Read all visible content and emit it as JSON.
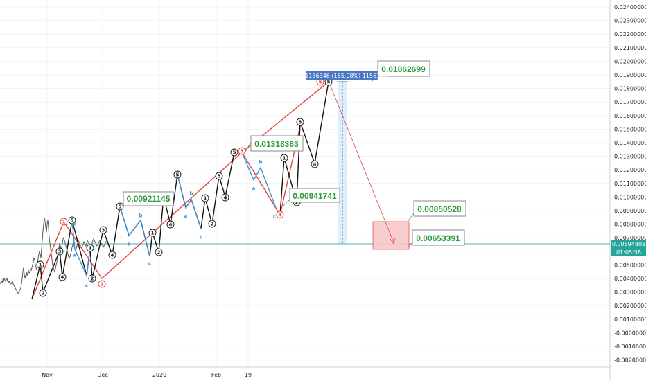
{
  "chart_data": {
    "type": "line",
    "x_ticks": [
      "Nov",
      "Dec",
      "2020",
      "Feb",
      "19"
    ],
    "y_ticks": [
      "0.02400000",
      "0.02300000",
      "0.02200000",
      "0.02100000",
      "0.02000000",
      "0.01900000",
      "0.01800000",
      "0.01700000",
      "0.01600000",
      "0.01500000",
      "0.01400000",
      "0.01300000",
      "0.01200000",
      "0.01100000",
      "0.01000000",
      "0.00900000",
      "0.00800000",
      "0.00700000",
      "0.00600000",
      "0.00500000",
      "0.00400000",
      "0.00300000",
      "0.00200000",
      "0.00100000",
      "-0.00000000",
      "-0.00100000",
      "-0.00200000"
    ],
    "ylim": [
      -0.002,
      0.0245
    ],
    "current_price": "0.00694808",
    "countdown": "01:05:38",
    "callouts": [
      "0.01862699",
      "0.01318363",
      "0.00921145",
      "0.00941741",
      "0.00850528",
      "0.00653391"
    ],
    "measure_label": "0.01156346 (165.08%) 1156346",
    "colors": {
      "black_wave": "#111111",
      "red_wave": "#e8403a",
      "blue_wave": "#3b8fd4",
      "price_line": "#4db6ac",
      "target_box": "#f8c8c8",
      "callout_text": "#2e9b3f",
      "measure_tag": "#4a78c4"
    },
    "series": [
      {
        "x": [
          0,
          1,
          2,
          3,
          4,
          5,
          6,
          7,
          8,
          9,
          10,
          11,
          12,
          13,
          14,
          15,
          16,
          17,
          18,
          19,
          20,
          21,
          22,
          23,
          24,
          25,
          26,
          27,
          28,
          29,
          30,
          31,
          32,
          33,
          34,
          35,
          36,
          37,
          38,
          39,
          40,
          41,
          42,
          43,
          44,
          45,
          46,
          47,
          48,
          49,
          50,
          51,
          52,
          53,
          54,
          55,
          56,
          57,
          58,
          59,
          60,
          61,
          62,
          63,
          64,
          65,
          66,
          67,
          68,
          69,
          70,
          71,
          72,
          73,
          74,
          75,
          76,
          77,
          78,
          79,
          80,
          81,
          82,
          83,
          84,
          85,
          86,
          87,
          88,
          89,
          90,
          91,
          92,
          93,
          94,
          95,
          96,
          97,
          98,
          99,
          100,
          101,
          102,
          103,
          104,
          105,
          106,
          107,
          108,
          109,
          110,
          111,
          112,
          113,
          114,
          115,
          116,
          117,
          118,
          119,
          120,
          121,
          122,
          123,
          124,
          125,
          126,
          127,
          128,
          129,
          130,
          131,
          132,
          133,
          134,
          135,
          136,
          137,
          138,
          139,
          140,
          141,
          142,
          143,
          144,
          145,
          146,
          147,
          148,
          149,
          150,
          151,
          152,
          153,
          154,
          155
        ],
        "y": [
          0.0036,
          0.0037,
          0.0038,
          0.0037,
          0.0039,
          0.0038,
          0.004,
          0.0039,
          0.0038,
          0.0039,
          0.004,
          0.0038,
          0.0037,
          0.0038,
          0.0037,
          0.0036,
          0.0036,
          0.0037,
          0.0038,
          0.0036,
          0.0035,
          0.0034,
          0.0033,
          0.0032,
          0.0031,
          0.003,
          0.0029,
          0.003,
          0.0031,
          0.0032,
          0.0033,
          0.0036,
          0.004,
          0.0045,
          0.0048,
          0.0043,
          0.004,
          0.0042,
          0.0045,
          0.0042,
          0.0044,
          0.0046,
          0.0044,
          0.0045,
          0.0047,
          0.0046,
          0.0048,
          0.005,
          0.0052,
          0.0055,
          0.0054,
          0.005,
          0.0048,
          0.0046,
          0.005,
          0.0055,
          0.0058,
          0.006,
          0.0058,
          0.0055,
          0.0062,
          0.0068,
          0.0075,
          0.008,
          0.0085,
          0.0082,
          0.0078,
          0.0074,
          0.008,
          0.0083,
          0.0078,
          0.007,
          0.0066,
          0.0062,
          0.0058,
          0.0054,
          0.005,
          0.0048,
          0.0046,
          0.0045,
          0.0047,
          0.005,
          0.0052,
          0.0055,
          0.0058,
          0.0062,
          0.0066,
          0.0064,
          0.0061,
          0.0063,
          0.0066,
          0.0069,
          0.007,
          0.0068,
          0.0066,
          0.0064,
          0.0062,
          0.006,
          0.0058,
          0.0056,
          0.0055,
          0.0056,
          0.0058,
          0.006,
          0.0063,
          0.0065,
          0.0066,
          0.0064,
          0.0062,
          0.006,
          0.0062,
          0.0064,
          0.0066,
          0.0068,
          0.0067,
          0.0066,
          0.0064,
          0.0063,
          0.0062,
          0.0064,
          0.0065,
          0.0067,
          0.0066,
          0.0065,
          0.0064,
          0.0066,
          0.0068,
          0.0067,
          0.0066,
          0.0065,
          0.0064,
          0.0063,
          0.0064,
          0.0066,
          0.0068,
          0.0069,
          0.0068,
          0.0067,
          0.0066,
          0.0065,
          0.0064,
          0.0065,
          0.0066,
          0.0067,
          0.0068,
          0.0067,
          0.0066,
          0.0065,
          0.0064,
          0.0063,
          0.0064,
          0.0065,
          0.0066,
          0.0067,
          0.0068,
          0.0069
        ]
      }
    ]
  }
}
